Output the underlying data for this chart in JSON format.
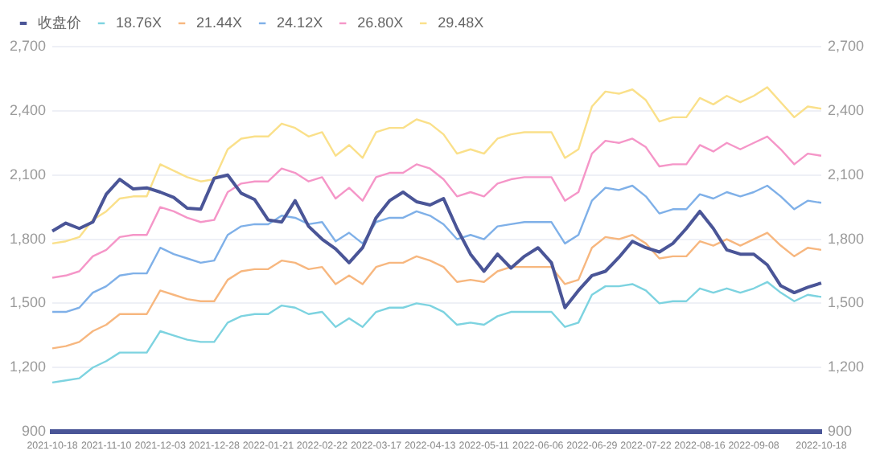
{
  "chart_data": {
    "type": "line",
    "legend": "top left",
    "grid": "y",
    "marker": "none",
    "line_style": "solid",
    "categories": [
      "2021-10-18",
      null,
      null,
      null,
      "2021-11-10",
      null,
      null,
      null,
      "2021-12-03",
      null,
      null,
      null,
      "2021-12-28",
      null,
      null,
      null,
      "2022-01-21",
      null,
      null,
      null,
      "2022-02-22",
      null,
      null,
      null,
      "2022-03-17",
      null,
      null,
      null,
      "2022-04-13",
      null,
      null,
      null,
      "2022-05-11",
      null,
      null,
      null,
      "2022-06-06",
      null,
      null,
      null,
      "2022-06-29",
      null,
      null,
      null,
      "2022-07-22",
      null,
      null,
      null,
      "2022-08-16",
      null,
      null,
      null,
      "2022-09-08",
      null,
      null,
      null,
      null,
      "2022-10-18"
    ],
    "ylim": [
      900,
      2700
    ],
    "yticks": [
      900,
      {
        "value": 1200,
        "label": "1,200"
      },
      {
        "value": 1500,
        "label": "1,500"
      },
      {
        "value": 1800,
        "label": "1,800"
      },
      {
        "value": 2100,
        "label": "2,100"
      },
      {
        "value": 2400,
        "label": "2,400"
      },
      {
        "value": 2700,
        "label": "2,700"
      }
    ],
    "y2lim": [
      900,
      2700
    ],
    "y2ticks": [
      900,
      {
        "value": 1200,
        "label": "1,200"
      },
      {
        "value": 1500,
        "label": "1,500"
      },
      {
        "value": 1800,
        "label": "1,800"
      },
      {
        "value": 2100,
        "label": "2,100"
      },
      {
        "value": 2400,
        "label": "2,400"
      },
      {
        "value": 2700,
        "label": "2,700"
      }
    ],
    "series": [
      {
        "name": "收盘价",
        "color": "#4a5597",
        "values": [
          1838,
          1875,
          1850,
          1880,
          2010,
          2080,
          2035,
          2040,
          2020,
          1995,
          1945,
          1940,
          2085,
          2100,
          2015,
          1985,
          1890,
          1880,
          1980,
          1860,
          1800,
          1755,
          1690,
          1760,
          1900,
          1980,
          2020,
          1975,
          1960,
          1990,
          1850,
          1730,
          1650,
          1730,
          1665,
          1720,
          1760,
          1690,
          1480,
          1560,
          1630,
          1650,
          1715,
          1790,
          1760,
          1740,
          1780,
          1850,
          1930,
          1850,
          1750,
          1730,
          1730,
          1680,
          1582,
          1550,
          1575,
          1595
        ]
      },
      {
        "name": "18.76X",
        "color": "#7dd3e0",
        "values": [
          1130,
          1140,
          1150,
          1200,
          1230,
          1270,
          1270,
          1270,
          1370,
          1350,
          1330,
          1320,
          1320,
          1410,
          1440,
          1450,
          1450,
          1490,
          1480,
          1450,
          1460,
          1390,
          1430,
          1390,
          1460,
          1480,
          1480,
          1500,
          1490,
          1460,
          1400,
          1410,
          1400,
          1440,
          1460,
          1460,
          1460,
          1460,
          1390,
          1410,
          1540,
          1580,
          1580,
          1590,
          1560,
          1500,
          1510,
          1510,
          1570,
          1550,
          1570,
          1550,
          1570,
          1600,
          1550,
          1510,
          1540,
          1530
        ]
      },
      {
        "name": "21.44X",
        "color": "#f7b77f",
        "values": [
          1290,
          1300,
          1320,
          1370,
          1400,
          1450,
          1450,
          1450,
          1560,
          1540,
          1520,
          1510,
          1510,
          1610,
          1650,
          1660,
          1660,
          1700,
          1690,
          1660,
          1670,
          1590,
          1630,
          1590,
          1670,
          1690,
          1690,
          1720,
          1700,
          1670,
          1600,
          1610,
          1600,
          1650,
          1670,
          1670,
          1670,
          1670,
          1590,
          1610,
          1760,
          1810,
          1800,
          1820,
          1780,
          1710,
          1720,
          1720,
          1790,
          1770,
          1800,
          1770,
          1800,
          1830,
          1770,
          1720,
          1760,
          1750
        ]
      },
      {
        "name": "24.12X",
        "color": "#7fb0e8",
        "values": [
          1460,
          1460,
          1480,
          1550,
          1580,
          1630,
          1640,
          1640,
          1760,
          1730,
          1710,
          1690,
          1700,
          1820,
          1860,
          1870,
          1870,
          1910,
          1900,
          1870,
          1880,
          1790,
          1830,
          1780,
          1880,
          1900,
          1900,
          1930,
          1910,
          1870,
          1800,
          1820,
          1800,
          1860,
          1870,
          1880,
          1880,
          1880,
          1780,
          1820,
          1980,
          2040,
          2030,
          2050,
          2000,
          1920,
          1940,
          1940,
          2010,
          1990,
          2020,
          2000,
          2020,
          2050,
          2000,
          1940,
          1980,
          1970
        ]
      },
      {
        "name": "26.80X",
        "color": "#f596c8",
        "values": [
          1620,
          1630,
          1650,
          1720,
          1750,
          1810,
          1820,
          1820,
          1950,
          1930,
          1900,
          1880,
          1890,
          2020,
          2060,
          2070,
          2070,
          2130,
          2110,
          2070,
          2090,
          1990,
          2040,
          1980,
          2090,
          2110,
          2110,
          2150,
          2130,
          2080,
          2000,
          2020,
          2000,
          2060,
          2080,
          2090,
          2090,
          2090,
          1980,
          2020,
          2200,
          2260,
          2250,
          2270,
          2230,
          2140,
          2150,
          2150,
          2240,
          2210,
          2250,
          2220,
          2250,
          2280,
          2220,
          2150,
          2200,
          2190
        ]
      },
      {
        "name": "29.48X",
        "color": "#fae08a",
        "values": [
          1780,
          1790,
          1810,
          1890,
          1930,
          1990,
          2000,
          2000,
          2150,
          2120,
          2090,
          2070,
          2080,
          2220,
          2270,
          2280,
          2280,
          2340,
          2320,
          2280,
          2300,
          2190,
          2240,
          2180,
          2300,
          2320,
          2320,
          2360,
          2340,
          2290,
          2200,
          2220,
          2200,
          2270,
          2290,
          2300,
          2300,
          2300,
          2180,
          2220,
          2420,
          2490,
          2480,
          2500,
          2450,
          2350,
          2370,
          2370,
          2460,
          2430,
          2470,
          2440,
          2470,
          2510,
          2440,
          2370,
          2420,
          2410
        ]
      }
    ]
  }
}
